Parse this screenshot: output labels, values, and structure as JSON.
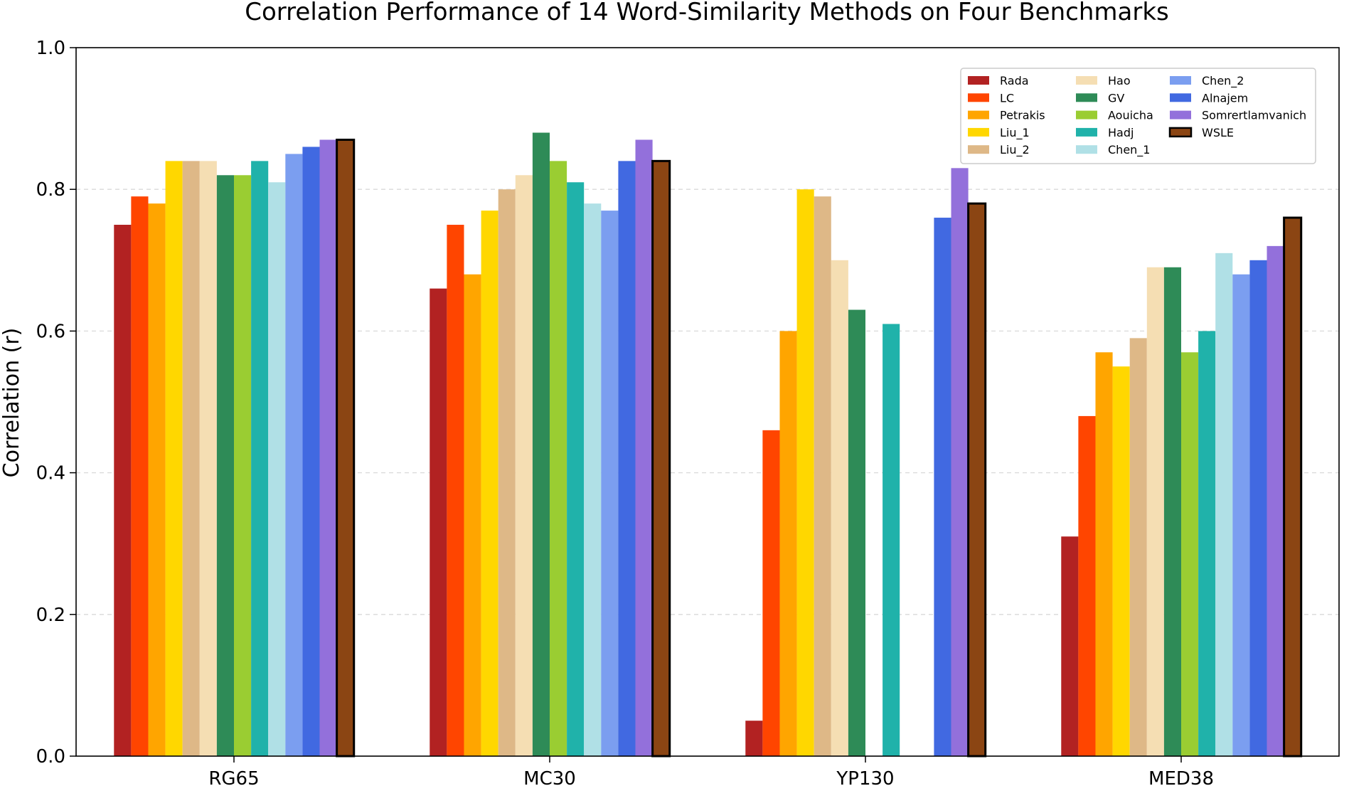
{
  "chart_data": {
    "type": "bar",
    "title": "Correlation Performance of 14 Word-Similarity Methods on Four Benchmarks",
    "xlabel": "",
    "ylabel": "Correlation (r)",
    "ylim": [
      0.0,
      1.0
    ],
    "yticks": [
      "0.0",
      "0.2",
      "0.4",
      "0.6",
      "0.8",
      "1.0"
    ],
    "categories": [
      "RG65",
      "MC30",
      "YP130",
      "MED38"
    ],
    "grid": "y-dashed",
    "legend_position": "top-right",
    "legend_columns": 3,
    "highlight_series": "WSLE",
    "series": [
      {
        "name": "Rada",
        "color": "#b22222",
        "values": [
          0.75,
          0.66,
          0.05,
          0.31
        ]
      },
      {
        "name": "LC",
        "color": "#ff4500",
        "values": [
          0.79,
          0.75,
          0.46,
          0.48
        ]
      },
      {
        "name": "Petrakis",
        "color": "#ffa500",
        "values": [
          0.78,
          0.68,
          0.6,
          0.57
        ]
      },
      {
        "name": "Liu_1",
        "color": "#ffd700",
        "values": [
          0.84,
          0.77,
          0.8,
          0.55
        ]
      },
      {
        "name": "Liu_2",
        "color": "#deb887",
        "values": [
          0.84,
          0.8,
          0.79,
          0.59
        ]
      },
      {
        "name": "Hao",
        "color": "#f5deb3",
        "values": [
          0.84,
          0.82,
          0.7,
          0.69
        ]
      },
      {
        "name": "GV",
        "color": "#2e8b57",
        "values": [
          0.82,
          0.88,
          0.63,
          0.69
        ]
      },
      {
        "name": "Aouicha",
        "color": "#9acd32",
        "values": [
          0.82,
          0.84,
          null,
          0.57
        ]
      },
      {
        "name": "Hadj",
        "color": "#20b2aa",
        "values": [
          0.84,
          0.81,
          0.61,
          0.6
        ]
      },
      {
        "name": "Chen_1",
        "color": "#b0e0e6",
        "values": [
          0.81,
          0.78,
          null,
          0.71
        ]
      },
      {
        "name": "Chen_2",
        "color": "#7b9ef0",
        "values": [
          0.85,
          0.77,
          null,
          0.68
        ]
      },
      {
        "name": "Alnajem",
        "color": "#4169e1",
        "values": [
          0.86,
          0.84,
          0.76,
          0.7
        ]
      },
      {
        "name": "Somrertlamvanich",
        "color": "#9370db",
        "values": [
          0.87,
          0.87,
          0.83,
          0.72
        ]
      },
      {
        "name": "WSLE",
        "color": "#8b4513",
        "values": [
          0.87,
          0.84,
          0.78,
          0.76
        ]
      }
    ]
  }
}
